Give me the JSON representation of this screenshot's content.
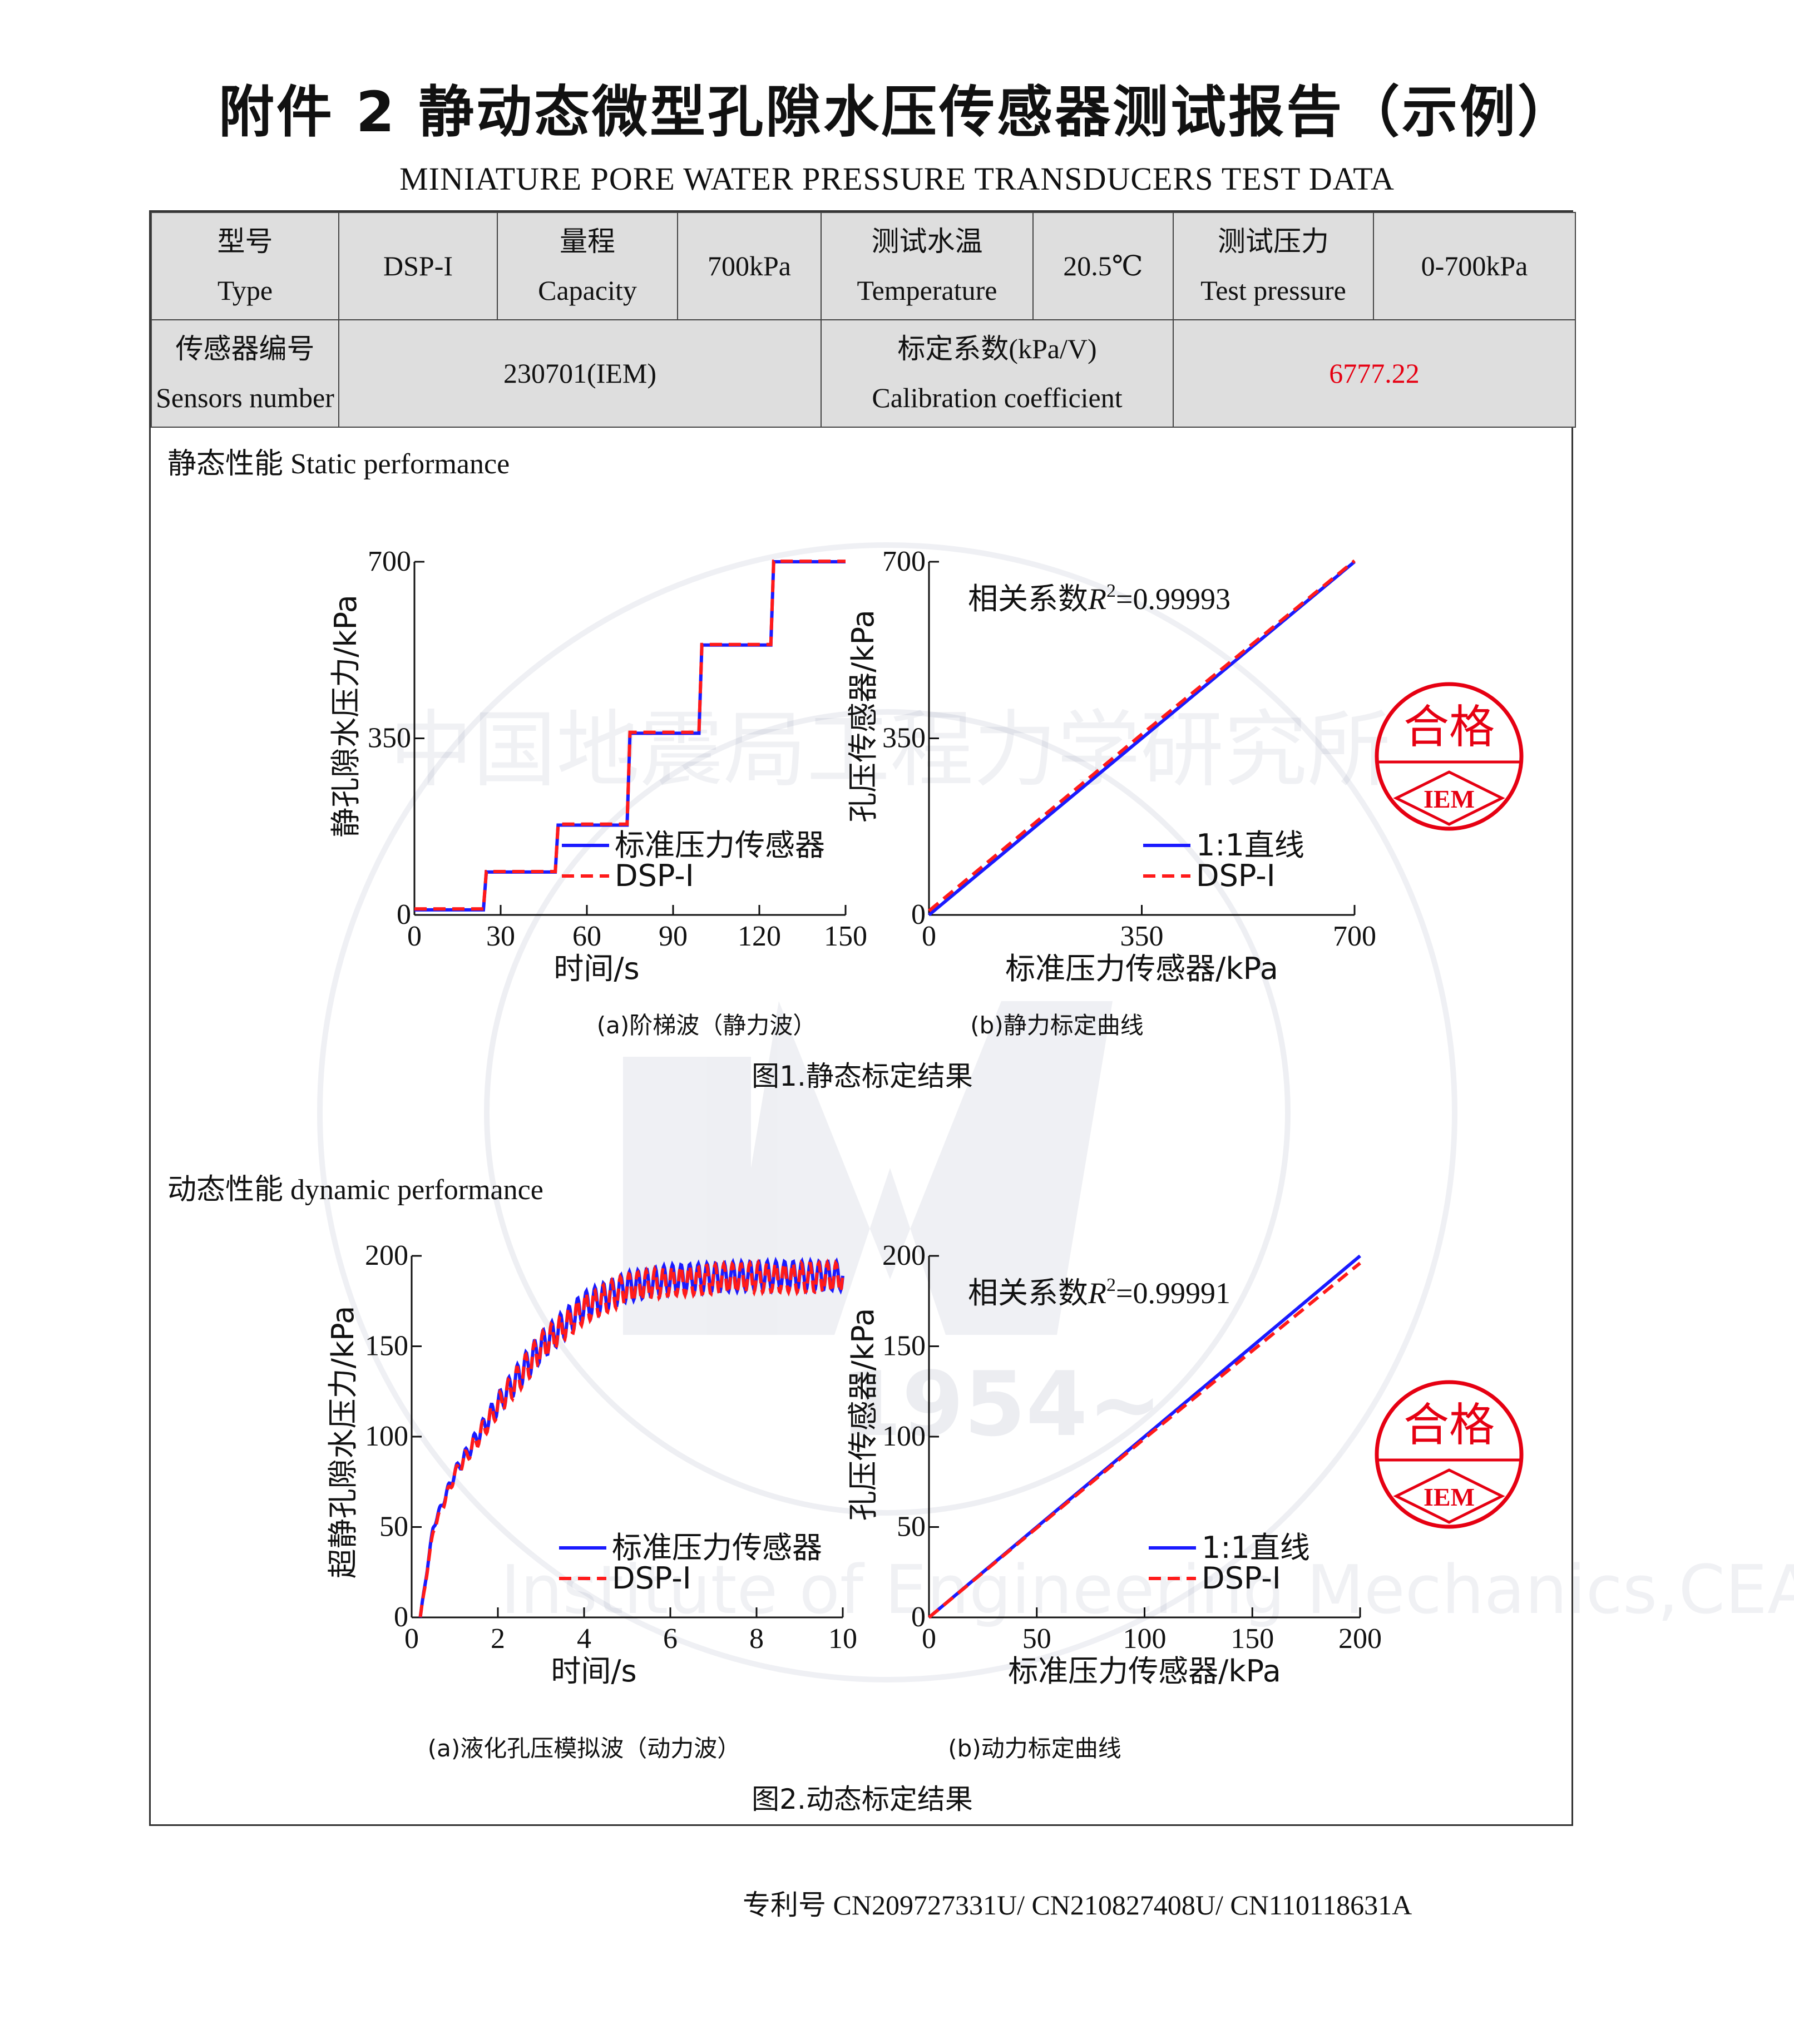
{
  "title": "附件 2  静动态微型孔隙水压传感器测试报告（示例）",
  "subtitle": "MINIATURE PORE WATER PRESSURE TRANSDUCERS TEST DATA",
  "info": {
    "type_cn": "型号",
    "type_en": "Type",
    "type_value": "DSP-I",
    "capacity_cn": "量程",
    "capacity_en": "Capacity",
    "capacity_value": "700kPa",
    "temp_cn": "测试水温",
    "temp_en": "Temperature",
    "temp_value": "20.5℃",
    "pressure_cn": "测试压力",
    "pressure_en": "Test pressure",
    "pressure_value": "0-700kPa",
    "sensor_cn": "传感器编号",
    "sensor_en": "Sensors number",
    "sensor_value": "230701(IEM)",
    "coef_cn": "标定系数(kPa/V)",
    "coef_en": "Calibration coefficient",
    "coef_value": "6777.22"
  },
  "static_section": {
    "cn": "静态性能",
    "en": "Static performance"
  },
  "dynamic_section": {
    "cn": "动态性能",
    "en": "dynamic performance"
  },
  "fig1_caption": "图1.静态标定结果",
  "fig2_caption": "图2.动态标定结果",
  "patent": {
    "label": "专利号",
    "numbers": "CN209727331U/ CN210827408U/ CN110118631A"
  },
  "stamp": {
    "text": "合格",
    "logo": "IEM"
  },
  "watermark": {
    "text": "中国地震局工程力学研究所",
    "en": "Institute of Engineering Mechanics,CEA",
    "year": "1954~"
  },
  "colors": {
    "standard": "#1a1aff",
    "dsp": "#ff1a1a",
    "stamp": "#e60012"
  },
  "chart_data": [
    {
      "id": "step",
      "type": "line",
      "caption": "(a)阶梯波（静力波）",
      "xlabel": "时间/s",
      "ylabel": "静孔隙水压力/kPa",
      "xlim": [
        0,
        150
      ],
      "ylim": [
        0,
        700
      ],
      "xticks": [
        "0",
        "30",
        "60",
        "90",
        "120",
        "150"
      ],
      "yticks": [
        "0",
        "350",
        "700"
      ],
      "legend": "inside-lower-right",
      "series": [
        {
          "name": "标准压力传感器",
          "x": [
            0,
            24,
            25,
            49,
            50,
            74,
            75,
            99,
            100,
            124,
            125,
            150
          ],
          "y": [
            10,
            10,
            85,
            85,
            178,
            178,
            360,
            360,
            535,
            535,
            700,
            700
          ]
        },
        {
          "name": "DSP-I",
          "x": [
            0,
            24,
            25,
            49,
            50,
            74,
            75,
            99,
            100,
            124,
            125,
            150
          ],
          "y": [
            12,
            12,
            86,
            86,
            180,
            180,
            362,
            362,
            536,
            536,
            701,
            701
          ]
        }
      ]
    },
    {
      "id": "static-cal",
      "type": "line",
      "caption": "(b)静力标定曲线",
      "annotation_prefix": "相关系数",
      "annotation_value": "=0.99993",
      "annotation_var": "R",
      "annotation_sup": "2",
      "xlabel": "标准压力传感器/kPa",
      "ylabel": "孔压传感器/kPa",
      "xlim": [
        0,
        700
      ],
      "ylim": [
        0,
        700
      ],
      "xticks": [
        "0",
        "350",
        "700"
      ],
      "yticks": [
        "0",
        "350",
        "700"
      ],
      "legend": "inside-lower-right",
      "series": [
        {
          "name": "1:1直线",
          "x": [
            0,
            700
          ],
          "y": [
            0,
            700
          ]
        },
        {
          "name": "DSP-I",
          "x": [
            0,
            350,
            700
          ],
          "y": [
            8,
            358,
            702
          ]
        }
      ]
    },
    {
      "id": "liquefaction",
      "type": "line",
      "caption": "(a)液化孔压模拟波（动力波）",
      "xlabel": "时间/s",
      "ylabel": "超静孔隙水压力/kPa",
      "xlim": [
        0,
        10
      ],
      "ylim": [
        0,
        200
      ],
      "xticks": [
        "0",
        "2",
        "4",
        "6",
        "8",
        "10"
      ],
      "yticks": [
        "0",
        "50",
        "100",
        "150",
        "200"
      ],
      "legend": "inside-lower-right",
      "series": [
        {
          "name": "标准压力传感器",
          "x": [
            0.2,
            0.5,
            1,
            2,
            3,
            4,
            5,
            6,
            7,
            8,
            9,
            10
          ],
          "y": [
            0,
            50,
            80,
            118,
            150,
            172,
            183,
            187,
            188,
            189,
            189,
            189
          ]
        },
        {
          "name": "DSP-I",
          "x": [
            0.2,
            0.5,
            1,
            2,
            3,
            4,
            5,
            6,
            7,
            8,
            9,
            10
          ],
          "y": [
            0,
            48,
            79,
            117,
            149,
            171,
            182,
            186,
            187,
            188,
            188,
            188
          ]
        }
      ]
    },
    {
      "id": "dynamic-cal",
      "type": "line",
      "caption": "(b)动力标定曲线",
      "annotation_prefix": "相关系数",
      "annotation_value": "=0.99991",
      "annotation_var": "R",
      "annotation_sup": "2",
      "xlabel": "标准压力传感器/kPa",
      "ylabel": "孔压传感器/kPa",
      "xlim": [
        0,
        200
      ],
      "ylim": [
        0,
        200
      ],
      "xticks": [
        "0",
        "50",
        "100",
        "150",
        "200"
      ],
      "yticks": [
        "0",
        "50",
        "100",
        "150",
        "200"
      ],
      "legend": "inside-lower-right",
      "series": [
        {
          "name": "1:1直线",
          "x": [
            0,
            200
          ],
          "y": [
            0,
            200
          ]
        },
        {
          "name": "DSP-I",
          "x": [
            0,
            100,
            200
          ],
          "y": [
            0,
            99,
            196
          ]
        }
      ]
    }
  ]
}
